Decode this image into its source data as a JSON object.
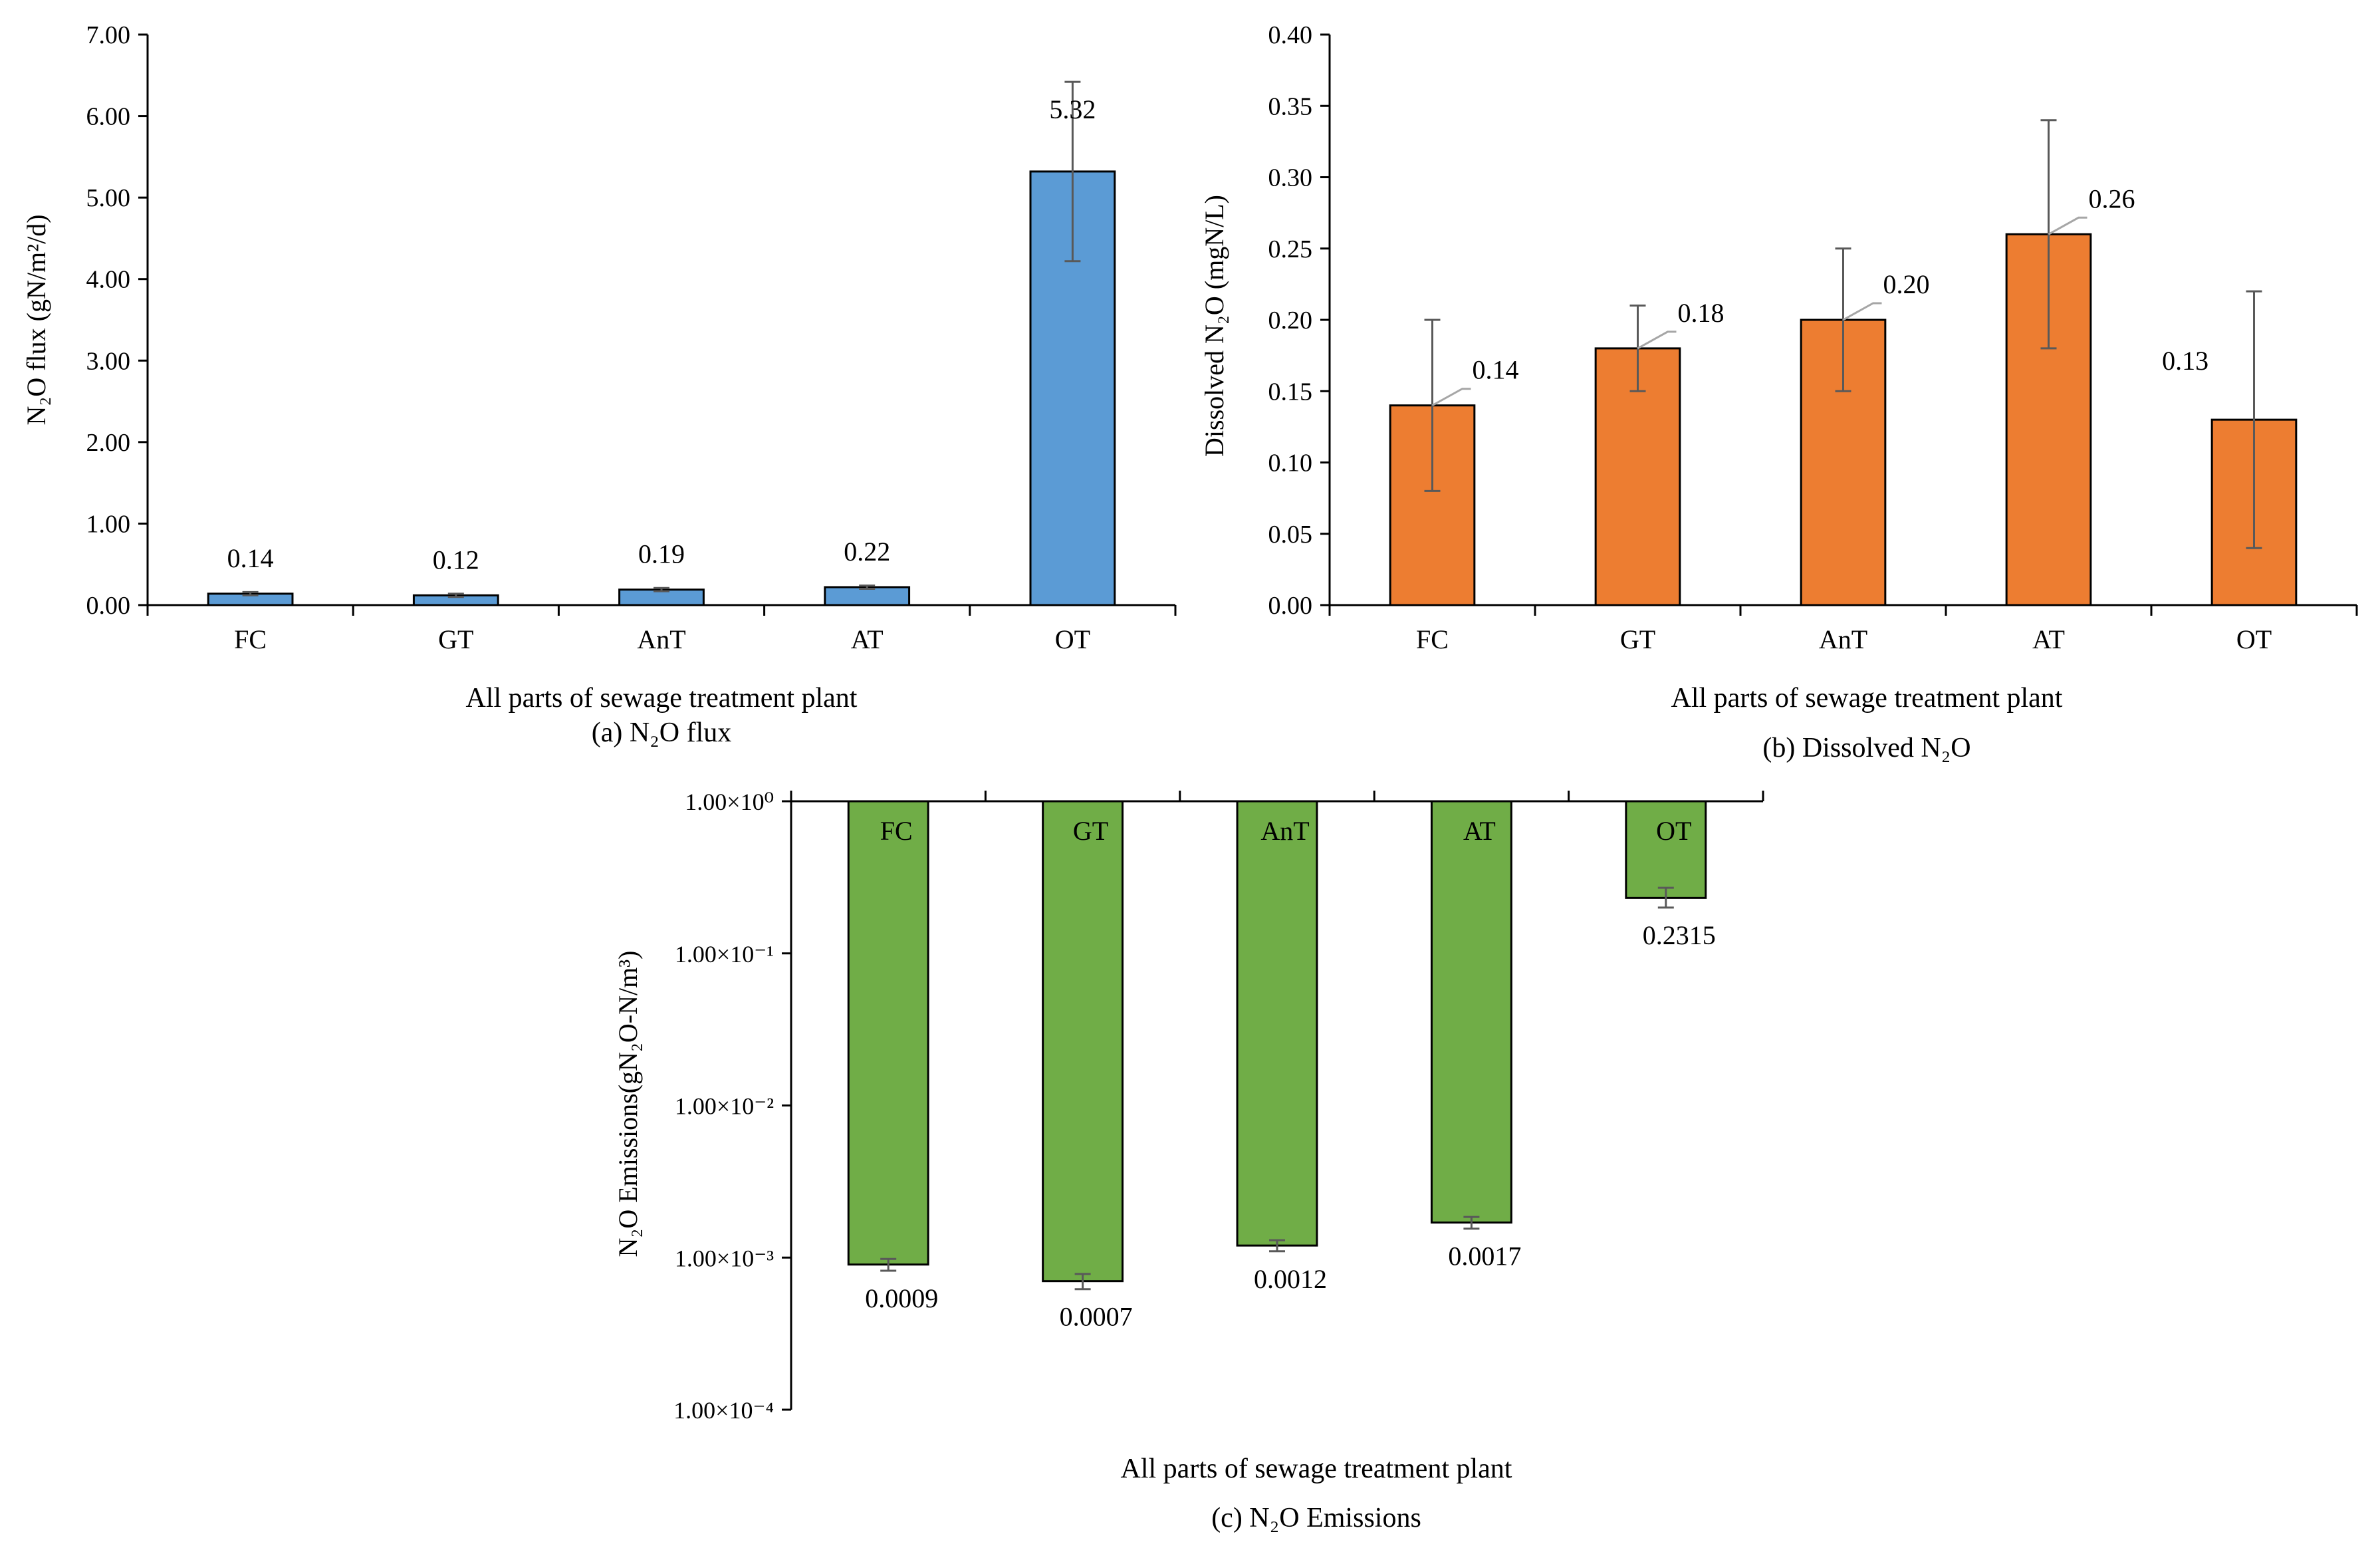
{
  "chart_data": [
    {
      "id": "a",
      "type": "bar",
      "title": "(a) N₂O flux",
      "xlabel": "All parts of sewage treatment plant",
      "ylabel": "N₂O flux (gN/m²/d)",
      "categories": [
        "FC",
        "GT",
        "AnT",
        "AT",
        "OT"
      ],
      "values": [
        0.14,
        0.12,
        0.19,
        0.22,
        5.32
      ],
      "errors": [
        [
          0.12,
          0.16
        ],
        [
          0.1,
          0.14
        ],
        [
          0.17,
          0.21
        ],
        [
          0.2,
          0.24
        ],
        [
          4.22,
          6.42
        ]
      ],
      "value_labels": [
        "0.14",
        "0.12",
        "0.19",
        "0.22",
        "5.32"
      ],
      "ylim": [
        0,
        7
      ],
      "yticks": [
        0,
        1,
        2,
        3,
        4,
        5,
        6,
        7
      ],
      "ytick_labels": [
        "0.00",
        "1.00",
        "2.00",
        "3.00",
        "4.00",
        "5.00",
        "6.00",
        "7.00"
      ],
      "bar_color": "#5b9bd5"
    },
    {
      "id": "b",
      "type": "bar",
      "title": "(b) Dissolved N₂O",
      "xlabel": "All parts of sewage treatment plant",
      "ylabel": "Dissolved N₂O (mgN/L)",
      "categories": [
        "FC",
        "GT",
        "AnT",
        "AT",
        "OT"
      ],
      "values": [
        0.14,
        0.18,
        0.2,
        0.26,
        0.13
      ],
      "errors": [
        [
          0.08,
          0.2
        ],
        [
          0.15,
          0.21
        ],
        [
          0.15,
          0.25
        ],
        [
          0.18,
          0.34
        ],
        [
          0.04,
          0.22
        ]
      ],
      "value_labels": [
        "0.14",
        "0.18",
        "0.20",
        "0.26",
        "0.13"
      ],
      "ylim": [
        0,
        0.4
      ],
      "yticks": [
        0,
        0.05,
        0.1,
        0.15,
        0.2,
        0.25,
        0.3,
        0.35,
        0.4
      ],
      "ytick_labels": [
        "0.00",
        "0.05",
        "0.10",
        "0.15",
        "0.20",
        "0.25",
        "0.30",
        "0.35",
        "0.40"
      ],
      "bar_color": "#ed7d31"
    },
    {
      "id": "c",
      "type": "bar",
      "title": "(c) N₂O Emissions",
      "xlabel": "All parts of sewage treatment plant",
      "ylabel": "N₂O Emissions(gN₂O-N/m³)",
      "yscale": "log",
      "categories": [
        "FC",
        "GT",
        "AnT",
        "AT",
        "OT"
      ],
      "values": [
        0.0009,
        0.0007,
        0.0012,
        0.0017,
        0.2315
      ],
      "errors": [
        [
          0.00082,
          0.00098
        ],
        [
          0.00062,
          0.00078
        ],
        [
          0.0011,
          0.0013
        ],
        [
          0.00155,
          0.00185
        ],
        [
          0.2,
          0.27
        ]
      ],
      "value_labels": [
        "0.0009",
        "0.0007",
        "0.0012",
        "0.0017",
        "0.2315"
      ],
      "ylim": [
        0.0001,
        1
      ],
      "yticks": [
        1,
        0.1,
        0.01,
        0.001,
        0.0001
      ],
      "ytick_labels": [
        "1.00×10⁰",
        "1.00×10⁻¹",
        "1.00×10⁻²",
        "1.00×10⁻³",
        "1.00×10⁻⁴"
      ],
      "bar_color": "#70ad47"
    }
  ],
  "colors": {
    "error_bar": "#595959",
    "leader_line": "#a6a6a6",
    "bar_edge": "#000000"
  }
}
